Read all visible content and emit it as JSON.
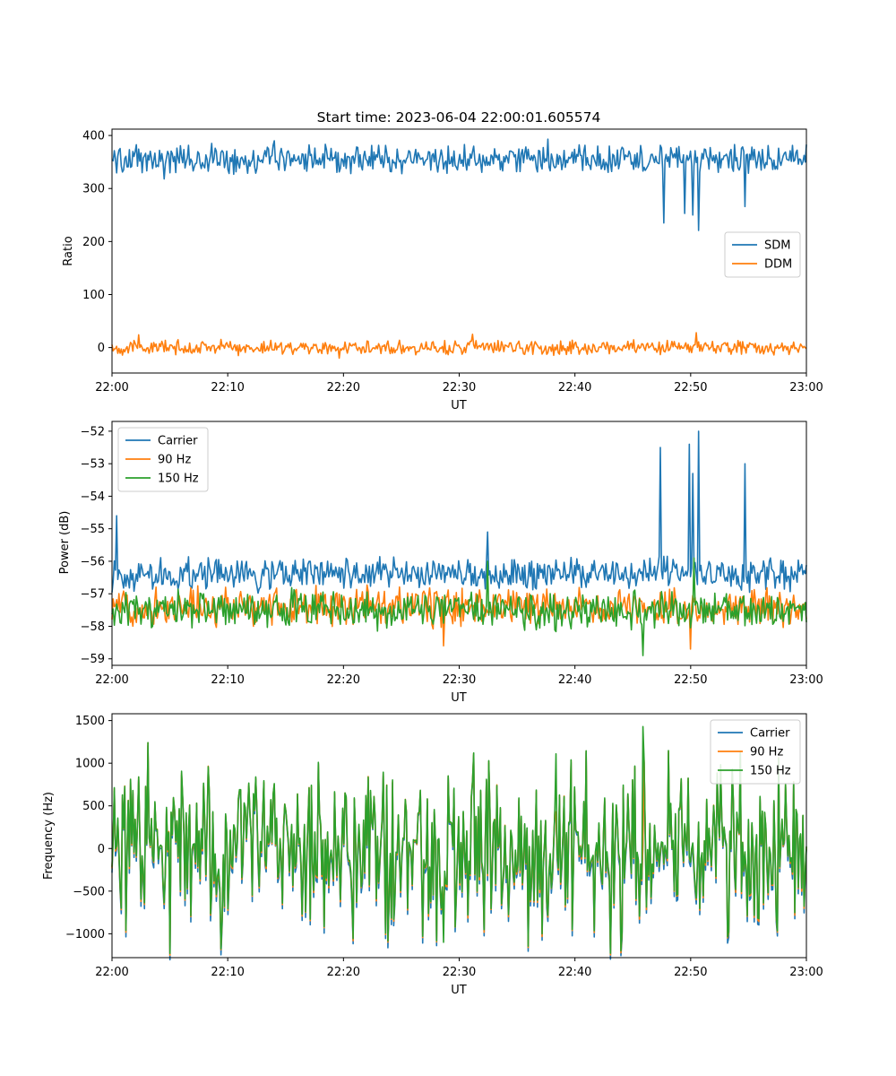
{
  "chart_data": [
    {
      "type": "line",
      "title": "Start time: 2023-06-04 22:00:01.605574",
      "xlabel": "UT",
      "ylabel": "Ratio",
      "xlim": [
        "22:00",
        "23:00"
      ],
      "x_ticks": [
        "22:00",
        "22:10",
        "22:20",
        "22:30",
        "22:40",
        "22:50",
        "23:00"
      ],
      "ylim": [
        -48,
        412
      ],
      "y_ticks": [
        0,
        100,
        200,
        300,
        400
      ],
      "y_tick_labels": [
        "0",
        "100",
        "200",
        "300",
        "400"
      ],
      "legend_position": "center-right",
      "grid": false,
      "series": [
        {
          "name": "SDM",
          "color": "#1f77b4",
          "baseline": 355,
          "noise": 16,
          "spikes": [
            {
              "t": "22:04:30",
              "value": 318
            },
            {
              "t": "22:14:00",
              "value": 390
            },
            {
              "t": "22:37:40",
              "value": 393
            },
            {
              "t": "22:47:40",
              "value": 235
            },
            {
              "t": "22:49:30",
              "value": 253
            },
            {
              "t": "22:50:10",
              "value": 250
            },
            {
              "t": "22:50:40",
              "value": 221
            },
            {
              "t": "22:54:40",
              "value": 266
            }
          ]
        },
        {
          "name": "DDM",
          "color": "#ff7f0e",
          "baseline": 0,
          "noise": 8,
          "spikes": [
            {
              "t": "22:02:20",
              "value": 24
            },
            {
              "t": "22:19:40",
              "value": -20
            },
            {
              "t": "22:31:10",
              "value": 25
            },
            {
              "t": "22:50:30",
              "value": 28
            }
          ]
        }
      ]
    },
    {
      "type": "line",
      "title": "",
      "xlabel": "UT",
      "ylabel": "Power (dB)",
      "xlim": [
        "22:00",
        "23:00"
      ],
      "x_ticks": [
        "22:00",
        "22:10",
        "22:20",
        "22:30",
        "22:40",
        "22:50",
        "23:00"
      ],
      "ylim": [
        -59.2,
        -51.7
      ],
      "y_ticks": [
        -59,
        -58,
        -57,
        -56,
        -55,
        -54,
        -53,
        -52
      ],
      "y_tick_labels": [
        "−59",
        "−58",
        "−57",
        "−56",
        "−55",
        "−54",
        "−53",
        "−52"
      ],
      "legend_position": "top-left",
      "grid": false,
      "series": [
        {
          "name": "Carrier",
          "color": "#1f77b4",
          "baseline": -56.4,
          "noise": 0.3,
          "spikes": [
            {
              "t": "22:00:25",
              "value": -54.6
            },
            {
              "t": "22:32:30",
              "value": -55.1
            },
            {
              "t": "22:47:20",
              "value": -52.5
            },
            {
              "t": "22:49:50",
              "value": -52.4
            },
            {
              "t": "22:50:10",
              "value": -53.3
            },
            {
              "t": "22:50:40",
              "value": -52.0
            },
            {
              "t": "22:54:40",
              "value": -53.0
            }
          ]
        },
        {
          "name": "90 Hz",
          "color": "#ff7f0e",
          "baseline": -57.4,
          "noise": 0.35,
          "spikes": [
            {
              "t": "22:28:40",
              "value": -58.6
            },
            {
              "t": "22:50:00",
              "value": -58.7
            }
          ]
        },
        {
          "name": "150 Hz",
          "color": "#2ca02c",
          "baseline": -57.5,
          "noise": 0.35,
          "spikes": [
            {
              "t": "22:32:30",
              "value": -56.0
            },
            {
              "t": "22:45:50",
              "value": -58.9
            },
            {
              "t": "22:50:20",
              "value": -55.9
            }
          ]
        }
      ]
    },
    {
      "type": "line",
      "title": "",
      "xlabel": "UT",
      "ylabel": "Frequency (Hz)",
      "xlim": [
        "22:00",
        "23:00"
      ],
      "x_ticks": [
        "22:00",
        "22:10",
        "22:20",
        "22:30",
        "22:40",
        "22:50",
        "23:00"
      ],
      "ylim": [
        -1280,
        1580
      ],
      "y_ticks": [
        -1000,
        -500,
        0,
        500,
        1000,
        1500
      ],
      "y_tick_labels": [
        "−1000",
        "−500",
        "0",
        "500",
        "1000",
        "1500"
      ],
      "legend_position": "top-right",
      "grid": false,
      "series": [
        {
          "name": "Carrier",
          "color": "#1f77b4",
          "baseline": 0,
          "noise": 380,
          "offset": -70
        },
        {
          "name": "90 Hz",
          "color": "#ff7f0e",
          "baseline": 0,
          "noise": 380,
          "offset": -20
        },
        {
          "name": "150 Hz",
          "color": "#2ca02c",
          "baseline": 0,
          "noise": 380,
          "offset": 0,
          "spikes": [
            {
              "t": "22:45:50",
              "value": 1430
            },
            {
              "t": "22:28:40",
              "value": -1100
            },
            {
              "t": "22:38:20",
              "value": 1110
            }
          ]
        }
      ]
    }
  ]
}
